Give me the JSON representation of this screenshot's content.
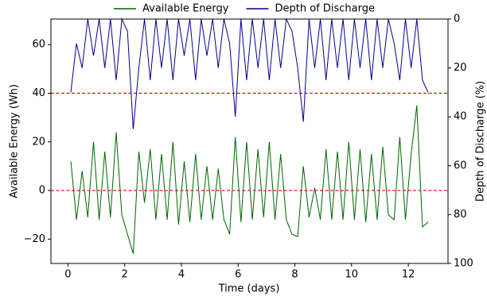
{
  "chart_data": {
    "type": "line",
    "xlabel": "Time (days)",
    "ylabel": "Available Energy (Wh)",
    "y2label": "Depth of Discharge (%)",
    "x": [
      0.1,
      0.3,
      0.5,
      0.7,
      0.9,
      1.1,
      1.3,
      1.5,
      1.7,
      1.9,
      2.1,
      2.3,
      2.5,
      2.7,
      2.9,
      3.1,
      3.3,
      3.5,
      3.7,
      3.9,
      4.1,
      4.3,
      4.5,
      4.7,
      4.9,
      5.1,
      5.3,
      5.5,
      5.7,
      5.9,
      6.1,
      6.3,
      6.5,
      6.7,
      6.9,
      7.1,
      7.3,
      7.5,
      7.7,
      7.9,
      8.1,
      8.3,
      8.5,
      8.7,
      8.9,
      9.1,
      9.3,
      9.5,
      9.7,
      9.9,
      10.1,
      10.3,
      10.5,
      10.7,
      10.9,
      11.1,
      11.3,
      11.5,
      11.7,
      11.9,
      12.1,
      12.3,
      12.5,
      12.7
    ],
    "series": [
      {
        "name": "Available Energy",
        "color": "#006400",
        "values": [
          12,
          -12,
          8,
          -11,
          20,
          -12,
          16,
          -11,
          24,
          -10,
          -18,
          -26,
          16,
          -5,
          17,
          -12,
          15,
          -12,
          20,
          -14,
          12,
          -13,
          15,
          -12,
          10,
          -12,
          9,
          -12,
          -18,
          22,
          -13,
          20,
          -12,
          17,
          -11,
          20,
          -12,
          15,
          -12,
          -18,
          -19,
          10,
          -11,
          1,
          -12,
          17,
          -12,
          16,
          -12,
          20,
          -12,
          17,
          -13,
          15,
          -12,
          18,
          -10,
          -12,
          22,
          -12,
          15,
          35,
          -15,
          -13
        ]
      },
      {
        "name": "Depth of Discharge",
        "color": "#00008b",
        "axis": "y2",
        "values": [
          30,
          10,
          20,
          0,
          15,
          0,
          20,
          0,
          25,
          0,
          5,
          45,
          20,
          0,
          25,
          0,
          20,
          0,
          25,
          0,
          15,
          0,
          25,
          0,
          15,
          0,
          20,
          0,
          10,
          40,
          0,
          25,
          0,
          20,
          0,
          25,
          0,
          20,
          0,
          5,
          20,
          42,
          0,
          20,
          0,
          25,
          0,
          20,
          0,
          25,
          0,
          20,
          0,
          25,
          0,
          20,
          0,
          10,
          25,
          0,
          20,
          0,
          25,
          30
        ]
      }
    ],
    "xlim": [
      -0.6,
      13.4
    ],
    "xticks": [
      0,
      2,
      4,
      6,
      8,
      10,
      12
    ],
    "ylim": [
      -30,
      70.5
    ],
    "yticks": [
      {
        "value": -20,
        "label": "−20"
      },
      0,
      20,
      40,
      60
    ],
    "y2lim": [
      100,
      0
    ],
    "y2ticks": [
      0,
      20,
      40,
      60,
      80,
      100
    ],
    "hlines": [
      40,
      0
    ],
    "hline_color": "#ff0000",
    "legend": "top"
  }
}
